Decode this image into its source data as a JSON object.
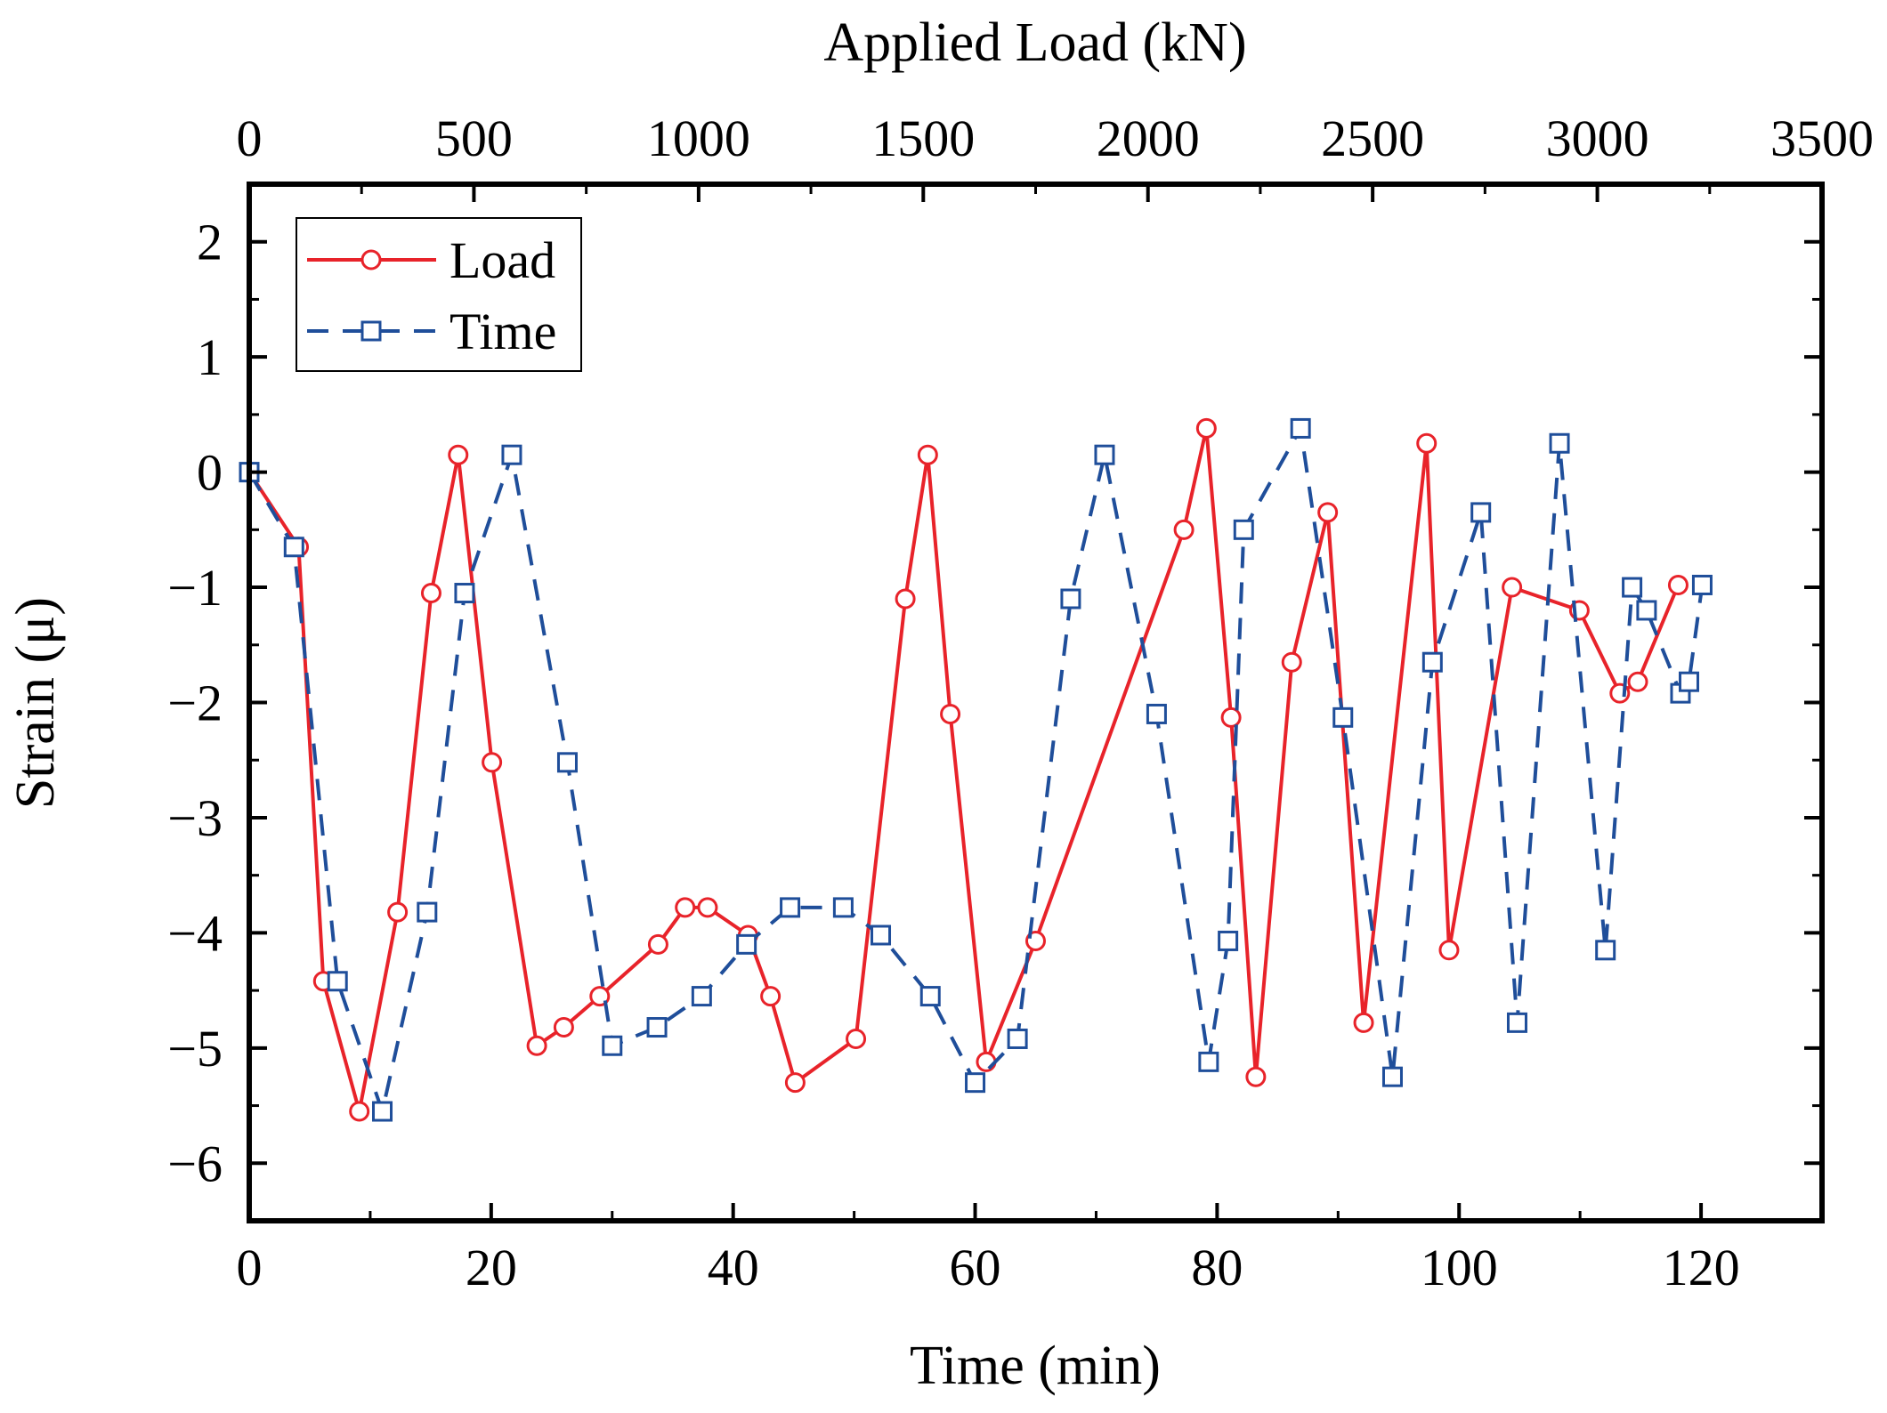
{
  "chart_data": {
    "type": "line",
    "title": "",
    "xlabel": "Time (min)",
    "ylabel": "Strain (μ)",
    "x2label": "Applied Load (kN)",
    "xlim": [
      0,
      130
    ],
    "x2lim": [
      0,
      3500
    ],
    "ylim": [
      -6.5,
      2.5
    ],
    "x_ticks": [
      0,
      20,
      40,
      60,
      80,
      100,
      120
    ],
    "x_tick_labels": [
      "0",
      "20",
      "40",
      "60",
      "80",
      "100",
      "120"
    ],
    "x2_ticks": [
      0,
      500,
      1000,
      1500,
      2000,
      2500,
      3000,
      3500
    ],
    "x2_tick_labels": [
      "0",
      "500",
      "1000",
      "1500",
      "2000",
      "2500",
      "3000",
      "3500"
    ],
    "y_ticks": [
      -6,
      -5,
      -4,
      -3,
      -2,
      -1,
      0,
      1,
      2
    ],
    "y_tick_labels": [
      "−6",
      "−5",
      "−4",
      "−3",
      "−2",
      "−1",
      "0",
      "1",
      "2"
    ],
    "legend_position": "top-left",
    "grid": false,
    "series": [
      {
        "name": "Load",
        "axis": "top",
        "color": "#e8232a",
        "marker": "circle",
        "line_style": "solid",
        "x": [
          0,
          110,
          165,
          245,
          330,
          405,
          465,
          540,
          640,
          700,
          780,
          910,
          970,
          1020,
          1110,
          1160,
          1215,
          1350,
          1460,
          1510,
          1560,
          1640,
          1750,
          2080,
          2130,
          2185,
          2240,
          2320,
          2400,
          2480,
          2620,
          2670,
          2810,
          2960,
          3050,
          3090,
          3180
        ],
        "y": [
          0,
          -0.65,
          -4.42,
          -5.55,
          -3.82,
          -1.05,
          0.15,
          -2.52,
          -4.98,
          -4.82,
          -4.55,
          -4.1,
          -3.78,
          -3.78,
          -4.02,
          -4.55,
          -5.3,
          -4.92,
          -1.1,
          0.15,
          -2.1,
          -5.12,
          -4.07,
          -0.5,
          0.38,
          -2.13,
          -5.25,
          -1.65,
          -0.35,
          -4.78,
          0.25,
          -4.15,
          -1.0,
          -1.2,
          -1.92,
          -1.82,
          -0.98
        ]
      },
      {
        "name": "Time",
        "axis": "bottom",
        "color": "#1f4e9a",
        "marker": "square",
        "line_style": "dashed",
        "x": [
          0,
          3.7,
          7.3,
          11,
          14.7,
          17.8,
          21.7,
          26.3,
          30,
          33.7,
          37.4,
          41.1,
          44.7,
          49.1,
          52.2,
          56.3,
          60,
          63.5,
          67.9,
          70.7,
          75,
          79.3,
          80.9,
          82.2,
          86.9,
          90.4,
          94.5,
          97.8,
          101.8,
          104.8,
          108.3,
          112.1,
          114.3,
          115.5,
          118.3,
          119,
          120.1
        ],
        "y": [
          0,
          -0.65,
          -4.42,
          -5.55,
          -3.82,
          -1.05,
          0.15,
          -2.52,
          -4.98,
          -4.82,
          -4.55,
          -4.1,
          -3.78,
          -3.78,
          -4.02,
          -4.55,
          -5.3,
          -4.92,
          -1.1,
          0.15,
          -2.1,
          -5.12,
          -4.07,
          -0.5,
          0.38,
          -2.13,
          -5.25,
          -1.65,
          -0.35,
          -4.78,
          0.25,
          -4.15,
          -1.0,
          -1.2,
          -1.92,
          -1.82,
          -0.98
        ]
      }
    ]
  }
}
